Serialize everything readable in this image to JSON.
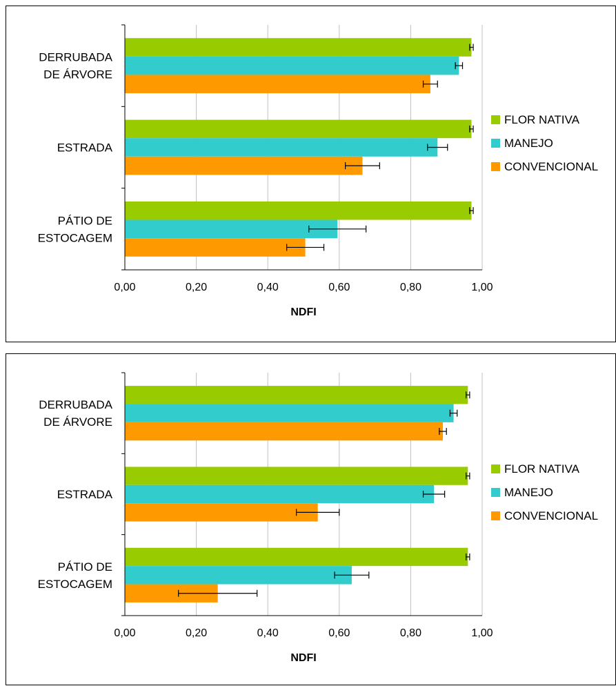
{
  "colors": {
    "FLOR NATIVA": "#99cc00",
    "MANEJO": "#33cccc",
    "CONVENCIONAL": "#ff9900",
    "grid": "#c0c0c0",
    "axis": "#000000"
  },
  "chart_data": [
    {
      "type": "bar",
      "orientation": "horizontal",
      "xlabel": "NDFI",
      "xlim": [
        0,
        1
      ],
      "xticks": [
        "0,00",
        "0,20",
        "0,40",
        "0,60",
        "0,80",
        "1,00"
      ],
      "grid": true,
      "legend_position": "right",
      "categories": [
        [
          "DERRUBADA",
          "DE ÁRVORE"
        ],
        [
          "ESTRADA"
        ],
        [
          "PÁTIO DE",
          "ESTOCAGEM"
        ]
      ],
      "series": [
        {
          "name": "FLOR NATIVA",
          "values": [
            0.97,
            0.97,
            0.97
          ],
          "errors": [
            0.005,
            0.005,
            0.005
          ]
        },
        {
          "name": "MANEJO",
          "values": [
            0.935,
            0.875,
            0.595
          ],
          "errors": [
            0.01,
            0.028,
            0.08
          ]
        },
        {
          "name": "CONVENCIONAL",
          "values": [
            0.855,
            0.665,
            0.505
          ],
          "errors": [
            0.02,
            0.048,
            0.052
          ]
        }
      ]
    },
    {
      "type": "bar",
      "orientation": "horizontal",
      "xlabel": "NDFI",
      "xlim": [
        0,
        1
      ],
      "xticks": [
        "0,00",
        "0,20",
        "0,40",
        "0,60",
        "0,80",
        "1,00"
      ],
      "grid": true,
      "legend_position": "right",
      "categories": [
        [
          "DERRUBADA",
          "DE ÁRVORE"
        ],
        [
          "ESTRADA"
        ],
        [
          "PÁTIO DE",
          "ESTOCAGEM"
        ]
      ],
      "series": [
        {
          "name": "FLOR NATIVA",
          "values": [
            0.96,
            0.96,
            0.96
          ],
          "errors": [
            0.005,
            0.005,
            0.005
          ]
        },
        {
          "name": "MANEJO",
          "values": [
            0.92,
            0.865,
            0.635
          ],
          "errors": [
            0.01,
            0.03,
            0.048
          ]
        },
        {
          "name": "CONVENCIONAL",
          "values": [
            0.89,
            0.54,
            0.26
          ],
          "errors": [
            0.01,
            0.06,
            0.11
          ]
        }
      ]
    }
  ]
}
